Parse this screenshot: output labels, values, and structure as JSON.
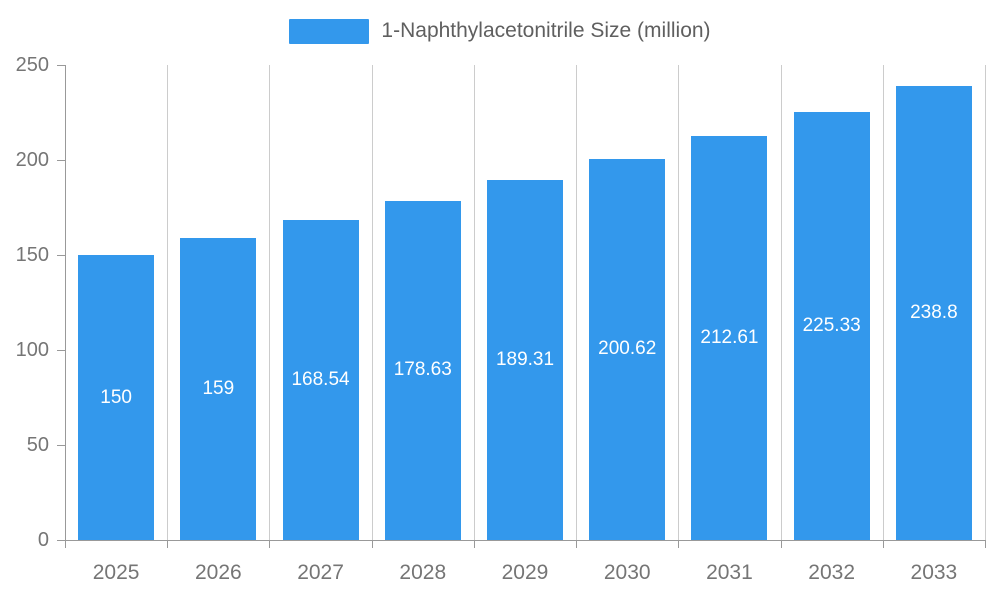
{
  "chart_data": {
    "type": "bar",
    "title": "",
    "legend": "1-Naphthylacetonitrile Size (million)",
    "legend_position": "top",
    "categories": [
      "2025",
      "2026",
      "2027",
      "2028",
      "2029",
      "2030",
      "2031",
      "2032",
      "2033"
    ],
    "values": [
      150,
      159,
      168.54,
      178.63,
      189.31,
      200.62,
      212.61,
      225.33,
      238.8
    ],
    "value_labels": [
      "150",
      "159",
      "168.54",
      "178.63",
      "189.31",
      "200.62",
      "212.61",
      "225.33",
      "238.8"
    ],
    "xlabel": "",
    "ylabel": "",
    "ylim": [
      0,
      250
    ],
    "y_ticks": [
      0,
      50,
      100,
      150,
      200,
      250
    ],
    "grid": "vertical-only",
    "colors": {
      "bar": "#3398EC",
      "bar_label_text": "#ffffff",
      "axis_text": "#757575",
      "legend_text": "#5f5f5f",
      "gridline": "#cccccc",
      "axis_line": "#999999",
      "background": "#ffffff"
    }
  }
}
